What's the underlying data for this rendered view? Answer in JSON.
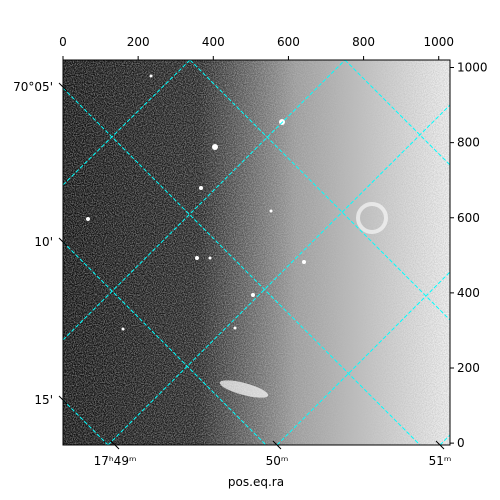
{
  "chart_data": {
    "type": "image",
    "xlabel": "pos.eq.ra",
    "xlim": [
      0,
      1030
    ],
    "ylim": [
      -5,
      1020
    ],
    "xticks": [
      0,
      200,
      400,
      600,
      800,
      1000
    ],
    "yticks": [
      0,
      200,
      400,
      600,
      800,
      1000
    ],
    "ra_tick_labels": [
      "17ʰ49ᵐ",
      "50ᵐ",
      "51ᵐ"
    ],
    "dec_tick_labels": [
      "70°05'",
      "10'",
      "15'"
    ],
    "grid_color": "#00ffff"
  }
}
